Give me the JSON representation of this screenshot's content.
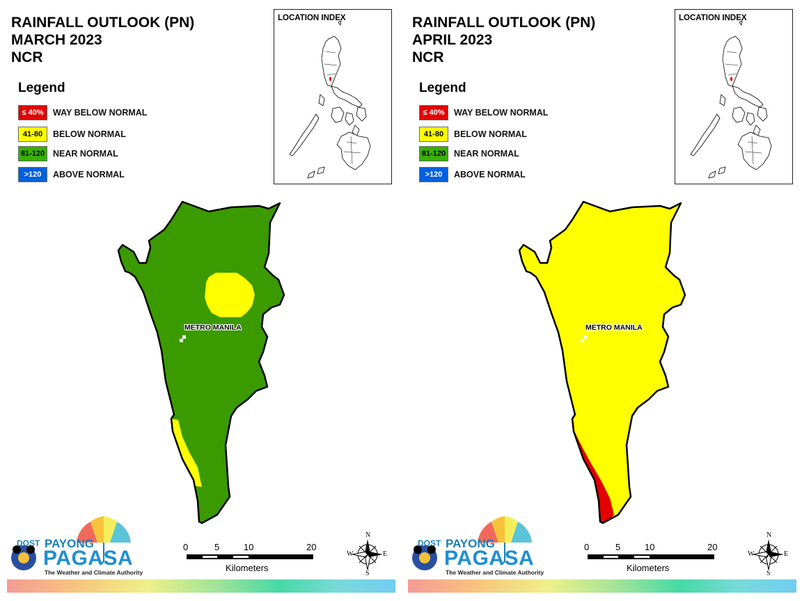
{
  "legend": {
    "title": "Legend",
    "items": [
      {
        "code": "≤ 40%",
        "label": "WAY BELOW NORMAL",
        "color": "#e20000",
        "text_color": "#ffffff"
      },
      {
        "code": "41-80",
        "label": "BELOW NORMAL",
        "color": "#ffff00",
        "text_color": "#000000"
      },
      {
        "code": "81-120",
        "label": "NEAR NORMAL",
        "color": "#38b000",
        "text_color": "#000000"
      },
      {
        "code": ">120",
        "label": "ABOVE NORMAL",
        "color": "#0060dd",
        "text_color": "#ffffff"
      }
    ]
  },
  "inset": {
    "title": "LOCATION INDEX"
  },
  "place_label": "METRO MANILA",
  "scale_bar": {
    "ticks": [
      "0",
      "5",
      "10",
      "20"
    ],
    "unit": "Kilometers"
  },
  "compass": {
    "n": "N",
    "s": "S",
    "e": "E",
    "w": "W"
  },
  "logo": {
    "dost": "DOST",
    "payong": "PAYONG",
    "pagasa": "PAGASA",
    "tagline": "The Weather and Climate Authority"
  },
  "panels": [
    {
      "title_line1": "RAINFALL OUTLOOK (PN)",
      "title_line2": "MARCH 2023",
      "title_line3": "NCR",
      "base_category": "NEAR NORMAL",
      "base_color": "#3a9a00",
      "zones": [
        {
          "category": "BELOW NORMAL",
          "color": "#ffff00",
          "area": "north-central (Caloocan/Quezon City)"
        },
        {
          "category": "BELOW NORMAL",
          "color": "#ffff00",
          "area": "southwest coast (Las Piñas/Muntinlupa)"
        }
      ]
    },
    {
      "title_line1": "RAINFALL OUTLOOK (PN)",
      "title_line2": "APRIL 2023",
      "title_line3": "NCR",
      "base_category": "BELOW NORMAL",
      "base_color": "#ffff00",
      "zones": [
        {
          "category": "WAY BELOW NORMAL",
          "color": "#e20000",
          "area": "southwest coast (Las Piñas/Muntinlupa)"
        }
      ]
    }
  ]
}
